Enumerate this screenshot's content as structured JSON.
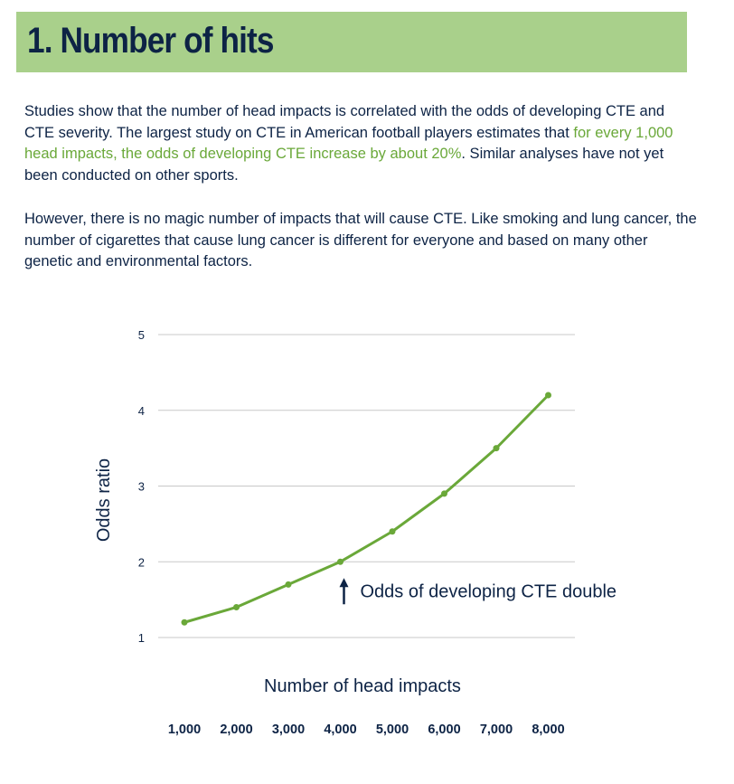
{
  "header": {
    "title": "1. Number of hits"
  },
  "paragraphs": {
    "p1_a": "Studies show that the number of head impacts is correlated with the odds of developing CTE and CTE severity. The largest study on CTE in American football players estimates that ",
    "p1_highlight": "for every 1,000 head impacts, the odds of developing CTE increase by about 20%",
    "p1_b": ". Similar analyses have not yet been conducted on other sports.",
    "p2": "However, there is no magic number of impacts that will cause CTE. Like smoking and lung cancer, the number of cigarettes that cause lung cancer is different for everyone and based on many other genetic and environmental factors."
  },
  "colors": {
    "banner": "#a9d08b",
    "highlight": "#6aa839",
    "line": "#6aa839",
    "text": "#0d2345",
    "grid": "#c8c8c8"
  },
  "chart_data": {
    "type": "line",
    "title": "",
    "xlabel": "Number of head impacts",
    "ylabel": "Odds ratio",
    "x": [
      1000,
      2000,
      3000,
      4000,
      5000,
      6000,
      7000,
      8000
    ],
    "x_tick_labels": [
      "1,000",
      "2,000",
      "3,000",
      "4,000",
      "5,000",
      "6,000",
      "7,000",
      "8,000"
    ],
    "y_ticks": [
      1,
      2,
      3,
      4,
      5
    ],
    "ylim": [
      1,
      5
    ],
    "grid": true,
    "series": [
      {
        "name": "Odds ratio",
        "values": [
          1.2,
          1.4,
          1.7,
          2.0,
          2.4,
          2.9,
          3.5,
          4.2
        ]
      }
    ],
    "annotation": {
      "text": "Odds of developing CTE double",
      "x": 4000,
      "y": 2.0
    }
  }
}
